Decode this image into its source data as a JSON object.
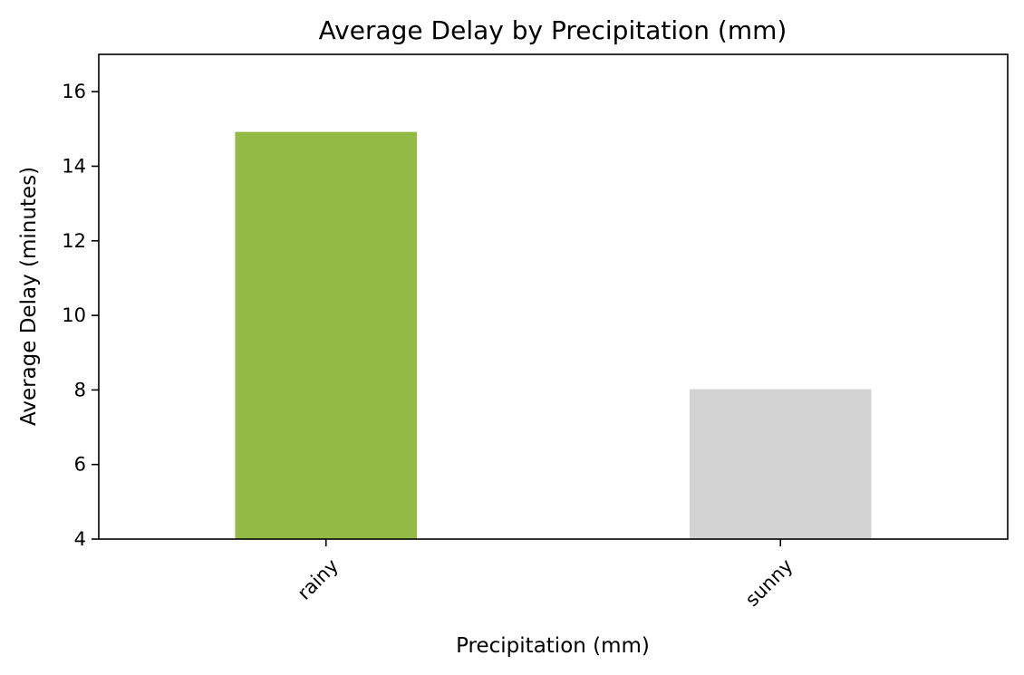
{
  "chart_data": {
    "type": "bar",
    "title": "Average Delay by Precipitation (mm)",
    "xlabel": "Precipitation (mm)",
    "ylabel": "Average Delay (minutes)",
    "categories": [
      "rainy",
      "sunny"
    ],
    "values": [
      14.92,
      8.02
    ],
    "colors": [
      "#94ba46",
      "#d3d3d3"
    ],
    "ylim": [
      4,
      17
    ],
    "yticks": [
      4,
      6,
      8,
      10,
      12,
      14,
      16
    ],
    "ytick_labels": [
      "4",
      "6",
      "8",
      "10",
      "12",
      "14",
      "16"
    ],
    "xtick_rotation": 45,
    "grid": false,
    "legend": "none"
  }
}
